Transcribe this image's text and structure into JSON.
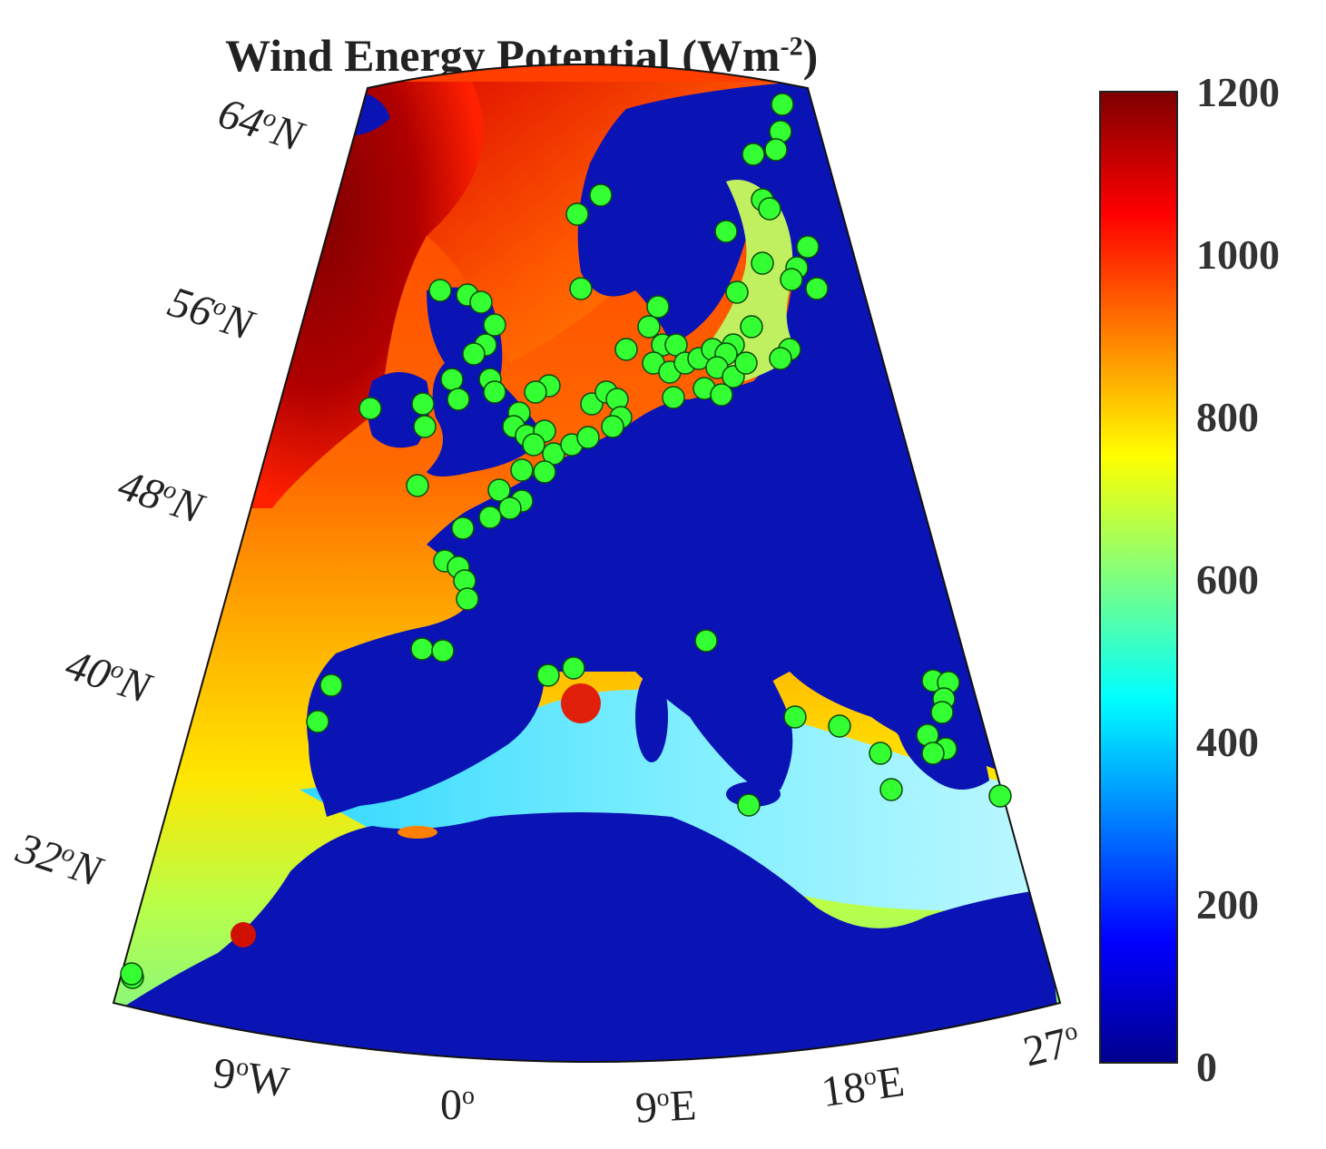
{
  "title": {
    "text": "Wind Energy Potential (Wm",
    "sup": "-2",
    "tail": ")"
  },
  "colorbar": {
    "label_values": [
      "1200",
      "1000",
      "800",
      "600",
      "400",
      "200",
      "0"
    ],
    "range": [
      0,
      1200
    ],
    "colors": [
      "#00008f",
      "#0000ff",
      "#007fff",
      "#00ffff",
      "#7fff7f",
      "#ffff00",
      "#ff7f00",
      "#ff0000",
      "#7f0000"
    ]
  },
  "latitude_labels": [
    {
      "deg": "64",
      "sup": "o",
      "hemi": "N"
    },
    {
      "deg": "56",
      "sup": "o",
      "hemi": "N"
    },
    {
      "deg": "48",
      "sup": "o",
      "hemi": "N"
    },
    {
      "deg": "40",
      "sup": "o",
      "hemi": "N"
    },
    {
      "deg": "32",
      "sup": "o",
      "hemi": "N"
    }
  ],
  "longitude_labels": [
    {
      "deg": "9",
      "sup": "o",
      "hemi": "W"
    },
    {
      "deg": "0",
      "sup": "o",
      "hemi": ""
    },
    {
      "deg": "9",
      "sup": "o",
      "hemi": "E"
    },
    {
      "deg": "18",
      "sup": "o",
      "hemi": "E"
    },
    {
      "deg": "27",
      "sup": "o",
      "hemi": ""
    }
  ],
  "map_colors": {
    "land": "#0a14b4",
    "ocean_high": "#8b0000",
    "ocean_mid": "#ff4000",
    "ocean_orange": "#ff9a00",
    "ocean_yellow": "#ffe600",
    "sea_cyan": "#39e6ff",
    "sea_light": "#a8f4ff",
    "marker_fill": "#33ff33",
    "marker_stroke": "#0a4a0a"
  },
  "sites": {
    "count": 150,
    "marker_shape": "circle",
    "marker_color_name": "green"
  }
}
